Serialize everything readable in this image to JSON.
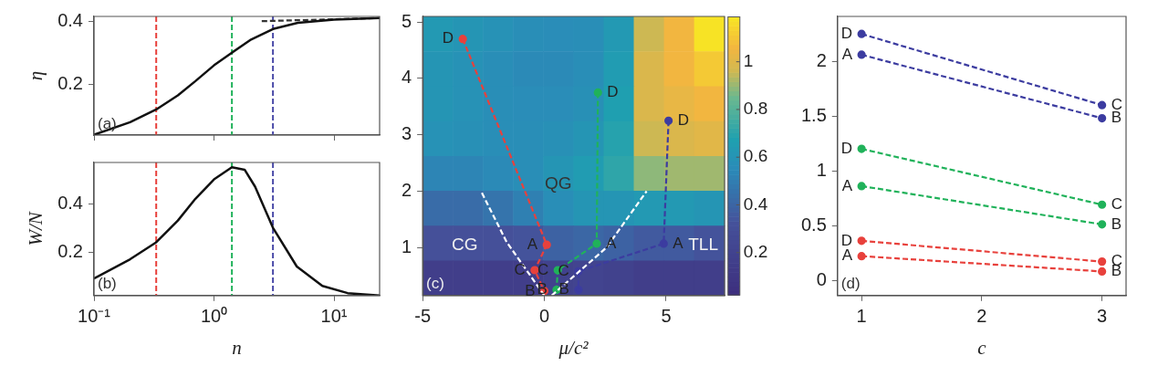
{
  "chart_data": [
    {
      "type": "line",
      "ylabel": "η",
      "xlim": [
        0.1,
        24
      ],
      "ylim": [
        0.039,
        0.415
      ],
      "log": "x",
      "xticks": [
        0.1,
        1,
        10
      ],
      "yticks": [
        0.2,
        0.4
      ],
      "tick_labels": "y",
      "grid": false,
      "legend": false,
      "series": [
        {
          "color": "#111111",
          "marker": "none",
          "line_style": "solid",
          "x": [
            0.1,
            0.2,
            0.33,
            0.5,
            0.7,
            1.0,
            1.41,
            2,
            3.1,
            5,
            10,
            24
          ],
          "values": [
            0.04,
            0.08,
            0.12,
            0.165,
            0.21,
            0.26,
            0.3,
            0.34,
            0.375,
            0.395,
            0.405,
            0.41
          ]
        },
        {
          "color": "#333333",
          "marker": "none",
          "line_style": "dashed",
          "x": [
            2.5,
            24
          ],
          "values": [
            0.4,
            0.41
          ]
        }
      ],
      "ref_lines": [
        {
          "axis": "x",
          "value": 0.33,
          "color": "#e8413c",
          "line_style": "dashed"
        },
        {
          "axis": "x",
          "value": 1.41,
          "color": "#20b25a",
          "line_style": "dashed"
        },
        {
          "axis": "x",
          "value": 3.1,
          "color": "#4a4aa8",
          "line_style": "dashed"
        }
      ],
      "annotations": [
        "(a)"
      ]
    },
    {
      "type": "line",
      "xlabel": "n",
      "ylabel": "W/N",
      "xlim": [
        0.1,
        24
      ],
      "ylim": [
        0.02,
        0.57
      ],
      "log": "x",
      "xticks": [
        {
          "value": 0.1,
          "label": "10⁻¹"
        },
        {
          "value": 1,
          "label": "10⁰"
        },
        {
          "value": 10,
          "label": "10¹"
        }
      ],
      "yticks": [
        0.2,
        0.4
      ],
      "grid": false,
      "legend": false,
      "series": [
        {
          "color": "#111111",
          "marker": "none",
          "line_style": "solid",
          "x": [
            0.1,
            0.2,
            0.33,
            0.5,
            0.7,
            1.0,
            1.41,
            1.8,
            2.2,
            3.1,
            4.9,
            8,
            13,
            24
          ],
          "values": [
            0.09,
            0.17,
            0.24,
            0.33,
            0.42,
            0.5,
            0.55,
            0.54,
            0.47,
            0.3,
            0.14,
            0.06,
            0.03,
            0.02
          ]
        }
      ],
      "ref_lines": [
        {
          "axis": "x",
          "value": 0.33,
          "color": "#e8413c",
          "line_style": "dashed"
        },
        {
          "axis": "x",
          "value": 1.41,
          "color": "#20b25a",
          "line_style": "dashed"
        },
        {
          "axis": "x",
          "value": 3.1,
          "color": "#4a4aa8",
          "line_style": "dashed"
        }
      ],
      "annotations": [
        "(b)"
      ]
    },
    {
      "type": "heatmap",
      "tick_labels": false,
      "categories": [
        null,
        null,
        null,
        null,
        null,
        null,
        null,
        null,
        null,
        null
      ],
      "y_categories": [
        null,
        null,
        null,
        null,
        null,
        null,
        null,
        null
      ],
      "cells": [
        [
          0.62,
          0.6,
          0.58,
          0.56,
          0.55,
          0.56,
          0.62,
          0.95,
          1.05,
          1.17
        ],
        [
          0.6,
          0.58,
          0.56,
          0.54,
          0.54,
          0.56,
          0.64,
          0.98,
          1.05,
          1.1
        ],
        [
          0.6,
          0.58,
          0.56,
          0.55,
          0.55,
          0.57,
          0.66,
          0.98,
          1.02,
          1.05
        ],
        [
          0.58,
          0.57,
          0.56,
          0.56,
          0.57,
          0.6,
          0.68,
          0.95,
          0.98,
          1.0
        ],
        [
          0.52,
          0.52,
          0.54,
          0.56,
          0.6,
          0.64,
          0.7,
          0.88,
          0.9,
          0.9
        ],
        [
          0.42,
          0.42,
          0.45,
          0.5,
          0.56,
          0.6,
          0.6,
          0.62,
          0.62,
          0.6
        ],
        [
          0.3,
          0.3,
          0.3,
          0.32,
          0.38,
          0.4,
          0.38,
          0.35,
          0.35,
          0.32
        ],
        [
          0.15,
          0.15,
          0.15,
          0.15,
          0.18,
          0.2,
          0.18,
          0.15,
          0.15,
          0.15
        ]
      ],
      "clim": [
        0.02,
        1.19
      ],
      "cticks": [
        0.2,
        0.4,
        0.6,
        0.8,
        1
      ],
      "annotations": [
        "CG",
        "QG",
        "TLL"
      ]
    },
    {
      "type": "line",
      "xlabel": "μ/c²",
      "xlim": [
        -5,
        7.4
      ],
      "ylim": [
        0.15,
        5.1
      ],
      "xticks": [
        -5,
        0,
        5
      ],
      "yticks": [
        1,
        2,
        3,
        4,
        5
      ],
      "grid": false,
      "legend": false,
      "series": [
        {
          "color": "#ffffff",
          "marker": "none",
          "line_style": "dashed",
          "x": [
            0,
            -1.55,
            -2.6
          ],
          "values": [
            0.15,
            1.1,
            2.0
          ]
        },
        {
          "color": "#ffffff",
          "marker": "none",
          "line_style": "dashed",
          "x": [
            0.3,
            2.55,
            4.2
          ],
          "values": [
            0.15,
            1.0,
            2.0
          ]
        },
        {
          "color": "#e8413c",
          "marker": "circle",
          "line_style": "dashed",
          "x": [
            -3.35,
            0.1,
            -0.4,
            0
          ],
          "values": [
            4.7,
            1.05,
            0.6,
            0.23
          ]
        },
        {
          "color": "#20b25a",
          "marker": "circle",
          "line_style": "dashed",
          "x": [
            2.2,
            2.15,
            0.55,
            0.5
          ],
          "values": [
            3.75,
            1.07,
            0.6,
            0.25
          ]
        },
        {
          "color": "#3c3ca0",
          "marker": "circle",
          "line_style": "dashed",
          "x": [
            5.1,
            4.9,
            1.4,
            1.4
          ],
          "values": [
            3.25,
            1.07,
            0.58,
            0.25
          ]
        }
      ],
      "annotations": [
        {
          "text": "D",
          "x": -3.35,
          "y": 4.7
        },
        {
          "text": "A",
          "x": 0.1,
          "y": 1.05
        },
        {
          "text": "C",
          "x": -0.4,
          "y": 0.6
        },
        {
          "text": "B",
          "x": 0,
          "y": 0.23
        },
        {
          "text": "D",
          "x": 2.2,
          "y": 3.75
        },
        {
          "text": "A",
          "x": 2.15,
          "y": 1.07
        },
        {
          "text": "C",
          "x": 0.55,
          "y": 0.6
        },
        {
          "text": "B",
          "x": 0.5,
          "y": 0.25
        },
        {
          "text": "D",
          "x": 5.1,
          "y": 3.25
        },
        {
          "text": "A",
          "x": 4.9,
          "y": 1.07
        },
        {
          "text": "C",
          "x": 1.4,
          "y": 0.58
        },
        {
          "text": "B",
          "x": 1.4,
          "y": 0.25
        },
        "(c)"
      ]
    },
    {
      "type": "line",
      "xlabel": "c",
      "xlim": [
        0.8,
        3.2
      ],
      "ylim": [
        -0.14,
        2.41
      ],
      "xticks": [
        1,
        2,
        3
      ],
      "yticks": [
        0,
        0.5,
        1,
        1.5,
        2
      ],
      "grid": false,
      "legend": false,
      "series": [
        {
          "color": "#3c3ca0",
          "marker": "circle",
          "line_style": "dashed",
          "x": [
            1,
            3
          ],
          "values": [
            2.25,
            1.6
          ]
        },
        {
          "color": "#3c3ca0",
          "marker": "circle",
          "line_style": "dashed",
          "x": [
            1,
            3
          ],
          "values": [
            2.06,
            1.48
          ]
        },
        {
          "color": "#20b25a",
          "marker": "circle",
          "line_style": "dashed",
          "x": [
            1,
            3
          ],
          "values": [
            1.2,
            0.69
          ]
        },
        {
          "color": "#20b25a",
          "marker": "circle",
          "line_style": "dashed",
          "x": [
            1,
            3
          ],
          "values": [
            0.86,
            0.51
          ]
        },
        {
          "color": "#e8413c",
          "marker": "circle",
          "line_style": "dashed",
          "x": [
            1,
            3
          ],
          "values": [
            0.36,
            0.17
          ]
        },
        {
          "color": "#e8413c",
          "marker": "circle",
          "line_style": "dashed",
          "x": [
            1,
            3
          ],
          "values": [
            0.22,
            0.08
          ]
        }
      ],
      "annotations": [
        {
          "text": "D",
          "x": 1,
          "y": 2.25
        },
        {
          "text": "A",
          "x": 1,
          "y": 2.06
        },
        {
          "text": "C",
          "x": 3,
          "y": 1.6
        },
        {
          "text": "B",
          "x": 3,
          "y": 1.48
        },
        {
          "text": "D",
          "x": 1,
          "y": 1.2
        },
        {
          "text": "A",
          "x": 1,
          "y": 0.86
        },
        {
          "text": "C",
          "x": 3,
          "y": 0.69
        },
        {
          "text": "B",
          "x": 3,
          "y": 0.51
        },
        {
          "text": "D",
          "x": 1,
          "y": 0.36
        },
        {
          "text": "A",
          "x": 1,
          "y": 0.22
        },
        {
          "text": "C",
          "x": 3,
          "y": 0.17
        },
        {
          "text": "B",
          "x": 3,
          "y": 0.08
        },
        "(d)"
      ]
    }
  ]
}
